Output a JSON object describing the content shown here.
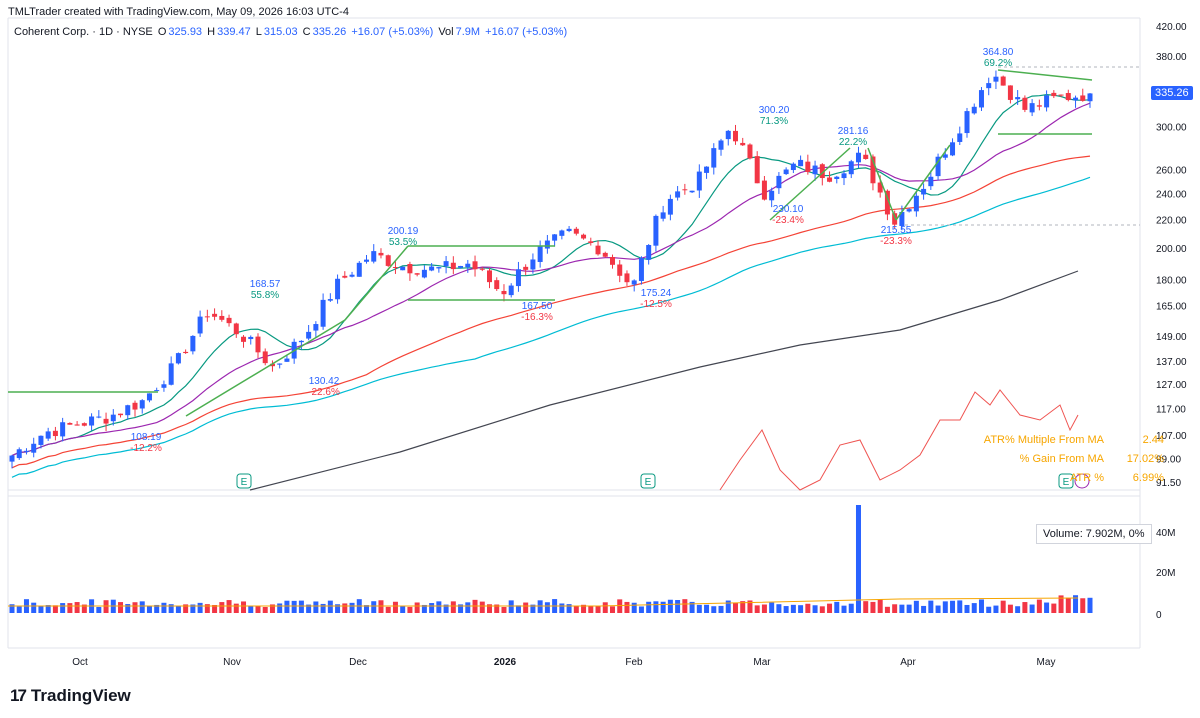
{
  "header": {
    "attribution": "TMLTrader created with TradingView.com, May 09, 2026 16:03 UTC-4",
    "symbol": "Coherent Corp. · 1D · NYSE",
    "o_label": "O",
    "o_val": "325.93",
    "h_label": "H",
    "h_val": "339.47",
    "l_label": "L",
    "l_val": "315.03",
    "c_label": "C",
    "c_val": "335.26",
    "chg": "+16.07 (+5.03%)",
    "vol_label": "Vol",
    "vol_val": "7.9M",
    "vol_chg": "+16.07 (+5.03%)"
  },
  "price_tag": "335.26",
  "volume_box": "Volume: 7.902M, 0%",
  "atr_panel": [
    {
      "label": "ATR% Multiple From MA",
      "value": "2.44"
    },
    {
      "label": "% Gain From MA",
      "value": "17.02%"
    },
    {
      "label": "ATR %",
      "value": "6.99%"
    }
  ],
  "footer": {
    "brand": "TradingView"
  },
  "colors": {
    "up": "#2962ff",
    "down": "#f23645",
    "ema10": "#089981",
    "ma21": "#9c27b0",
    "ma50": "#f44336",
    "ma65": "#00bcd4",
    "ma200": "#434651",
    "trend": "#4caf50",
    "atr": "#f7a600"
  },
  "chart_data": {
    "type": "candlestick",
    "y_axis_scale": "log",
    "y_ticks": [
      420.0,
      380.0,
      340.0,
      300.0,
      260.0,
      240.0,
      220.0,
      200.0,
      180.0,
      165.0,
      149.0,
      137.0,
      127.0,
      117.0,
      107.0,
      99.0,
      91.5
    ],
    "volume_ticks": [
      "40M",
      "20M",
      "0"
    ],
    "x_ticks": [
      "Oct",
      "Nov",
      "Dec",
      "2026",
      "Feb",
      "Mar",
      "Apr",
      "May"
    ],
    "annotations": [
      {
        "price": "108.19",
        "pct": "-12.2%"
      },
      {
        "price": "168.57",
        "pct": "55.8%"
      },
      {
        "price": "130.42",
        "pct": "-22.6%"
      },
      {
        "price": "200.19",
        "pct": "53.5%"
      },
      {
        "price": "167.50",
        "pct": "-16.3%"
      },
      {
        "price": "175.24",
        "pct": "-12.5%"
      },
      {
        "price": "300.20",
        "pct": "71.3%"
      },
      {
        "price": "230.10",
        "pct": "-23.4%"
      },
      {
        "price": "281.16",
        "pct": "22.2%"
      },
      {
        "price": "215.55",
        "pct": "-23.3%"
      },
      {
        "price": "364.80",
        "pct": "69.2%"
      }
    ],
    "earnings_markers": [
      "E",
      "E",
      "E"
    ],
    "series": [
      {
        "name": "Price",
        "x": [
          "2025-09-22",
          "2025-09-29",
          "2025-10-06",
          "2025-10-13",
          "2025-10-20",
          "2025-10-27",
          "2025-11-03",
          "2025-11-10",
          "2025-11-17",
          "2025-11-24",
          "2025-12-01",
          "2025-12-08",
          "2025-12-15",
          "2025-12-22",
          "2025-12-29",
          "2026-01-05",
          "2026-01-12",
          "2026-01-19",
          "2026-01-26",
          "2026-02-02",
          "2026-02-09",
          "2026-02-16",
          "2026-02-23",
          "2026-03-02",
          "2026-03-09",
          "2026-03-16",
          "2026-03-23",
          "2026-03-30",
          "2026-04-06",
          "2026-04-13",
          "2026-04-20",
          "2026-04-27",
          "2026-05-04",
          "2026-05-08"
        ],
        "y": [
          100,
          108,
          111,
          114,
          120,
          135,
          162,
          150,
          134,
          150,
          178,
          196,
          188,
          186,
          190,
          172,
          196,
          210,
          200,
          175,
          235,
          250,
          300,
          240,
          265,
          255,
          272,
          218,
          250,
          300,
          360,
          318,
          330,
          335.26
        ]
      }
    ]
  }
}
